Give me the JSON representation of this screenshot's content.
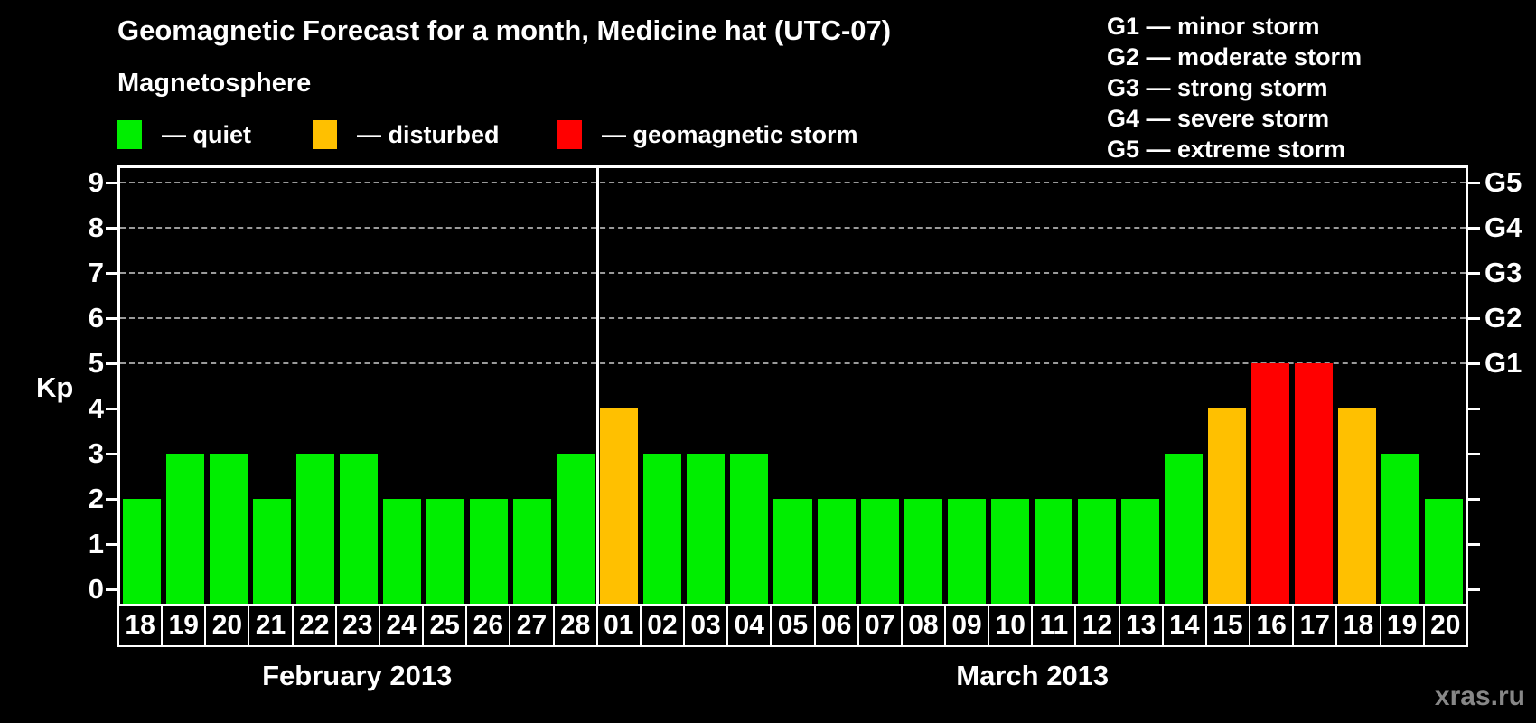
{
  "header": {
    "title": "Geomagnetic Forecast for a month, Medicine hat (UTC-07)",
    "subtitle": "Magnetosphere"
  },
  "legend": [
    {
      "name": "quiet",
      "label": "— quiet",
      "color": "#00EE00"
    },
    {
      "name": "disturbed",
      "label": "— disturbed",
      "color": "#FFC000"
    },
    {
      "name": "storm",
      "label": "— geomagnetic storm",
      "color": "#FF0000"
    }
  ],
  "storm_scale": [
    {
      "label": "G1 — minor storm"
    },
    {
      "label": "G2 — moderate storm"
    },
    {
      "label": "G3 — strong storm"
    },
    {
      "label": "G4 — severe storm"
    },
    {
      "label": "G5 — extreme storm"
    }
  ],
  "watermark": "xras.ru",
  "colors": {
    "background": "#000000",
    "axis": "#FFFFFF",
    "gridline": "#9A9A9A",
    "quiet": "#00EE00",
    "disturbed": "#FFC000",
    "storm": "#FF0000",
    "watermark": "#878787"
  },
  "chart_data": {
    "type": "bar",
    "title": "Geomagnetic Forecast for a month, Medicine hat (UTC-07)",
    "xlabel": "",
    "ylabel": "Kp",
    "ylim": [
      0,
      9
    ],
    "yticks": [
      0,
      1,
      2,
      3,
      4,
      5,
      6,
      7,
      8,
      9
    ],
    "gridlines_kp": [
      5,
      6,
      7,
      8,
      9
    ],
    "grid_style": "dashed horizontal lines only at storm levels G1-G5",
    "legend_position": "top-left",
    "right_axis": [
      {
        "label": "G1",
        "kp": 5
      },
      {
        "label": "G2",
        "kp": 6
      },
      {
        "label": "G3",
        "kp": 7
      },
      {
        "label": "G4",
        "kp": 8
      },
      {
        "label": "G5",
        "kp": 9
      }
    ],
    "months": [
      {
        "label": "February 2013",
        "start_index": 0,
        "days": 11
      },
      {
        "label": "March 2013",
        "start_index": 11,
        "days": 20
      }
    ],
    "categories": [
      "18",
      "19",
      "20",
      "21",
      "22",
      "23",
      "24",
      "25",
      "26",
      "27",
      "28",
      "01",
      "02",
      "03",
      "04",
      "05",
      "06",
      "07",
      "08",
      "09",
      "10",
      "11",
      "12",
      "13",
      "14",
      "15",
      "16",
      "17",
      "18",
      "19",
      "20"
    ],
    "values": [
      2,
      3,
      3,
      2,
      3,
      3,
      2,
      2,
      2,
      2,
      3,
      4,
      3,
      3,
      3,
      2,
      2,
      2,
      2,
      2,
      2,
      2,
      2,
      2,
      3,
      4,
      5,
      5,
      4,
      3,
      2
    ],
    "color_rule": {
      "kp_0_to_3": "quiet",
      "kp_4": "disturbed",
      "kp_5_plus": "storm"
    }
  }
}
